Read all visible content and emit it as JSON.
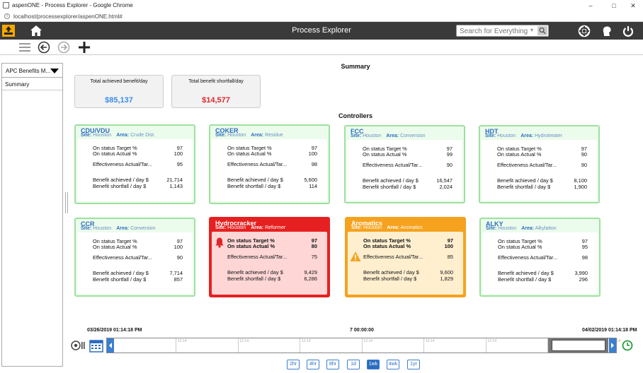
{
  "browser": {
    "window_title": "aspenONE - Process Explorer - Google Chrome",
    "url": "localhost/processexplorer/aspenONE.html#"
  },
  "header": {
    "title": "Process Explorer",
    "search_placeholder": "Search for Everything"
  },
  "leftpanel": {
    "selector_label": "APC Benefits M...",
    "items": [
      "Summary"
    ]
  },
  "summary": {
    "title": "Summary",
    "total_achieved_label": "Total achieved benefit/day",
    "total_achieved_value": "$85,137",
    "total_shortfall_label": "Total benefit shortfall/day",
    "total_shortfall_value": "$14,577"
  },
  "controllers_title": "Controllers",
  "labels": {
    "site": "Site:",
    "area": "Area:",
    "target": "On status Target %",
    "actual": "On status Actual %",
    "effectiveness": "Effectiveness Actual/Tar...",
    "achieved": "Benefit achieved / day $",
    "shortfall": "Benefit shortfall / day $"
  },
  "controllers": [
    {
      "name": "CDU/VDU",
      "site": "Houston",
      "area": "Crude Dist.",
      "state": "normal",
      "target": "97",
      "actual": "100",
      "effectiveness": "95",
      "achieved": "21,714",
      "shortfall": "1,143"
    },
    {
      "name": "COKER",
      "site": "Houston",
      "area": "Residue",
      "state": "normal",
      "target": "97",
      "actual": "100",
      "effectiveness": "98",
      "achieved": "5,600",
      "shortfall": "114"
    },
    {
      "name": "FCC",
      "site": "Houston",
      "area": "Conversion",
      "state": "normal",
      "target": "97",
      "actual": "99",
      "effectiveness": "90",
      "achieved": "16,547",
      "shortfall": "2,024"
    },
    {
      "name": "HDT",
      "site": "Houston",
      "area": "Hydrotreater",
      "state": "normal",
      "target": "97",
      "actual": "90",
      "effectiveness": "90",
      "achieved": "8,100",
      "shortfall": "1,900"
    },
    {
      "name": "CCR",
      "site": "Houston",
      "area": "Conversion",
      "state": "normal",
      "target": "97",
      "actual": "100",
      "effectiveness": "90",
      "achieved": "7,714",
      "shortfall": "857"
    },
    {
      "name": "Hydrocracker",
      "site": "Houston",
      "area": "Reformer",
      "state": "alarm",
      "target": "97",
      "actual": "80",
      "effectiveness": "75",
      "achieved": "9,429",
      "shortfall": "6,286"
    },
    {
      "name": "Aromatics",
      "site": "Houston",
      "area": "Aromatics",
      "state": "warning",
      "target": "97",
      "actual": "100",
      "effectiveness": "85",
      "achieved": "9,600",
      "shortfall": "1,829"
    },
    {
      "name": "ALKY",
      "site": "Houston",
      "area": "Alkylation",
      "state": "normal",
      "target": "97",
      "actual": "95",
      "effectiveness": "98",
      "achieved": "3,990",
      "shortfall": "296"
    }
  ],
  "timeline": {
    "start": "03/26/2019 01:14:18 PM",
    "span": "7 00:00:00",
    "end": "04/02/2019 01:14:18 PM",
    "tick_label": "12:14",
    "ranges": [
      "2hr",
      "4hr",
      "8hr",
      "1d",
      "1wk",
      "4wk",
      "1yr"
    ],
    "active_range": "1wk"
  },
  "colors": {
    "accent_blue": "#2b6cbf",
    "achieved": "#3a8ee6",
    "shortfall": "#e0262b",
    "ok_border": "#9ee09e",
    "alarm": "#e62020",
    "warning": "#f5a21e"
  }
}
